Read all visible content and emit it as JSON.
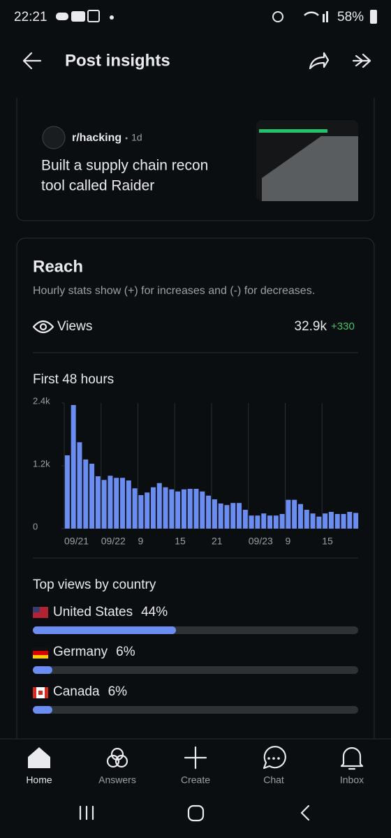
{
  "status_bar": {
    "time": "22:21",
    "battery": "58%"
  },
  "header": {
    "title": "Post insights"
  },
  "post": {
    "subreddit": "r/hacking",
    "age": "1d",
    "title_lines": [
      "Built a supply chain recon",
      "tool called Raider"
    ]
  },
  "reach": {
    "title": "Reach",
    "subtitle": "Hourly stats show (+) for increases and (-) for decreases.",
    "views_label": "Views",
    "views": "32.9k",
    "views_change": "+330"
  },
  "chart_data": {
    "type": "bar",
    "title": "First 48 hours",
    "categories": [
      "09/21",
      null,
      null,
      null,
      null,
      null,
      "09/22",
      null,
      null,
      null,
      null,
      null,
      "9",
      null,
      null,
      null,
      null,
      null,
      "15",
      null,
      null,
      null,
      null,
      null,
      "21",
      null,
      null,
      null,
      null,
      null,
      "09/23",
      null,
      null,
      null,
      null,
      null,
      "9",
      null,
      null,
      null,
      null,
      null,
      "15",
      null,
      null,
      null,
      null,
      null
    ],
    "values": [
      1400,
      2360,
      1650,
      1320,
      1240,
      1000,
      930,
      1010,
      970,
      970,
      920,
      770,
      640,
      690,
      790,
      870,
      790,
      750,
      710,
      750,
      760,
      760,
      710,
      630,
      560,
      480,
      450,
      490,
      490,
      360,
      250,
      250,
      290,
      250,
      250,
      280,
      550,
      550,
      470,
      360,
      290,
      230,
      290,
      320,
      280,
      280,
      320,
      300
    ],
    "color": "#6b8cf0",
    "ylim": [
      0,
      2400
    ],
    "yticks": [
      0,
      {
        "value": 1200,
        "label": "1.2k"
      },
      {
        "value": 2400,
        "label": "2.4k"
      }
    ]
  },
  "countries": {
    "type": "bar",
    "title": "Top views by country",
    "categories": [
      "United States",
      "Germany",
      "Canada"
    ],
    "values": [
      44,
      6,
      6
    ],
    "value_labels": [
      "44%",
      "6%",
      "6%"
    ],
    "xlim": [
      0,
      100
    ],
    "color": "#6b8cf0"
  },
  "nav": [
    "Home",
    "Answers",
    "Create",
    "Chat",
    "Inbox"
  ]
}
